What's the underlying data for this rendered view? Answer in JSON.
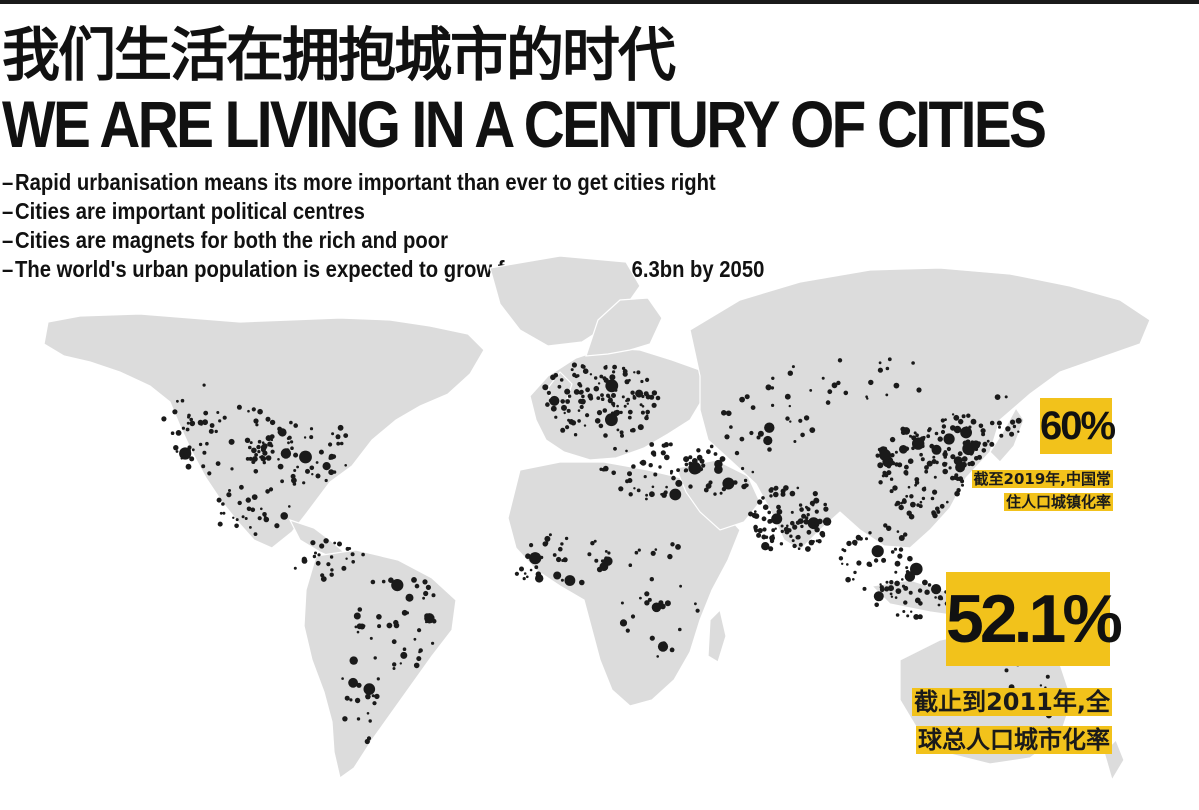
{
  "header": {
    "title_cn": "我们生活在拥抱城市的时代",
    "title_en": "WE ARE LIVING IN A CENTURY OF CITIES"
  },
  "bullets": [
    "Rapid urbanisation means its more important than ever to get cities right",
    "Cities are important political centres",
    "Cities are magnets for both the rich and poor",
    "The world's urban population is expected to grow form 3.9bn to 6.3bn by 2050"
  ],
  "stats": {
    "china": {
      "value": "60%",
      "caption_line1": "截至2019年,中国常",
      "caption_line2": "住人口城镇化率"
    },
    "world": {
      "value": "52.1%",
      "caption_line1": "截止到2011年,全",
      "caption_line2": "球总人口城市化率"
    }
  },
  "colors": {
    "land": "#dcdcdc",
    "city_dots": "#1a1a1a",
    "highlight": "#f2c21b",
    "text": "#111111"
  }
}
